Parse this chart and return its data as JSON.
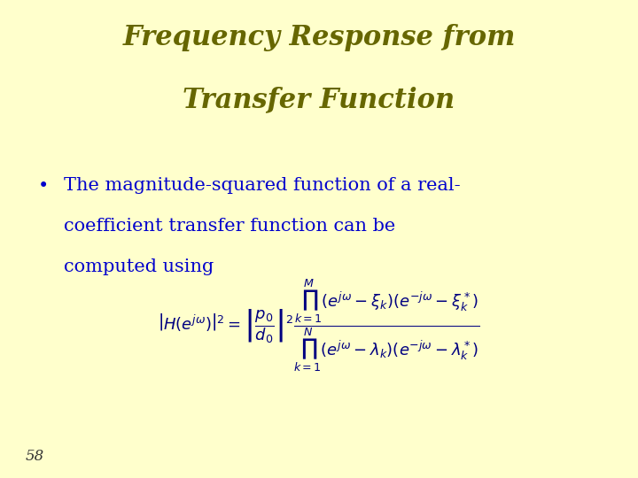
{
  "background_color": "#ffffcc",
  "title_line1": "Frequency Response from",
  "title_line2": "Transfer Function",
  "title_color": "#666600",
  "title_fontsize": 22,
  "bullet_text_line1": "The magnitude-squared function of a real-",
  "bullet_text_line2": "coefficient transfer function can be",
  "bullet_text_line3": "computed using",
  "bullet_color": "#0000cc",
  "bullet_fontsize": 15,
  "equation_color": "#000080",
  "equation_fontsize": 13,
  "page_number": "58",
  "page_number_color": "#333333",
  "page_number_fontsize": 12,
  "fig_width": 7.2,
  "fig_height": 5.4,
  "dpi": 100
}
